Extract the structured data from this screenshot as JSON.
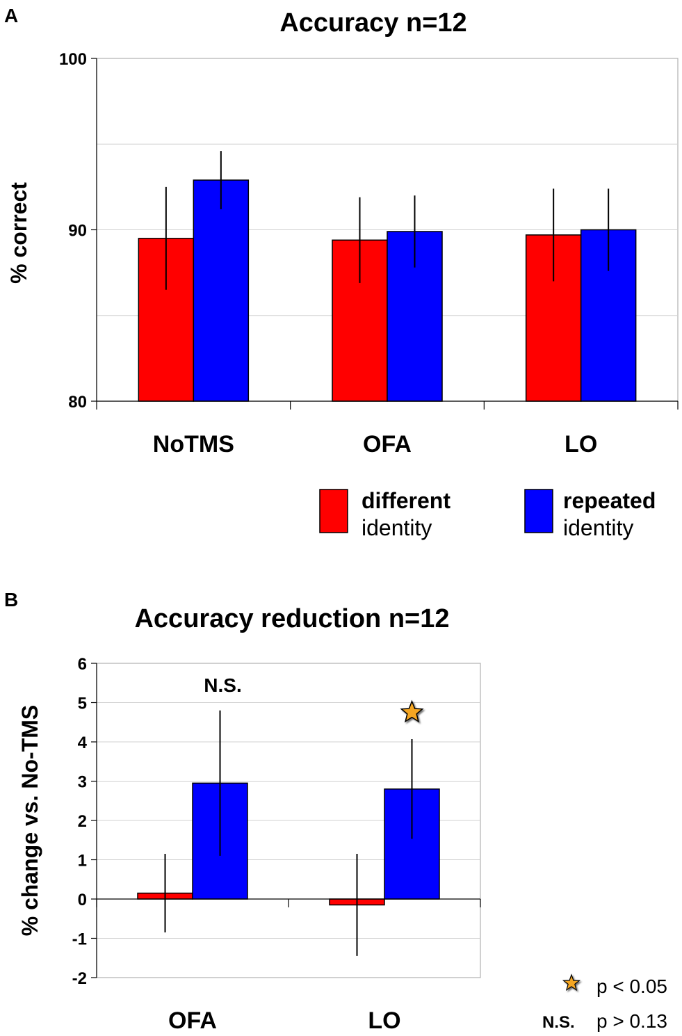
{
  "chart_data": [
    {
      "panel": "A",
      "type": "bar",
      "title": "Accuracy n=12",
      "xlabel": "",
      "ylabel": "% correct",
      "ylim": [
        80,
        100
      ],
      "yticks": [
        "80",
        "90",
        "100"
      ],
      "grid": true,
      "categories": [
        "NoTMS",
        "OFA",
        "LO"
      ],
      "series": [
        {
          "name": "different identity",
          "color": "#ff0000",
          "values": [
            89.5,
            89.4,
            89.7
          ],
          "err": [
            3.0,
            2.5,
            2.7
          ]
        },
        {
          "name": "repeated identity",
          "color": "#0000ff",
          "values": [
            92.9,
            89.9,
            90.0
          ],
          "err": [
            1.7,
            2.1,
            2.4
          ]
        }
      ],
      "legend": [
        {
          "main": "different",
          "sub": "identity",
          "color": "#ff0000"
        },
        {
          "main": "repeated",
          "sub": "identity",
          "color": "#0000ff"
        }
      ]
    },
    {
      "panel": "B",
      "type": "bar",
      "title": "Accuracy reduction  n=12",
      "xlabel": "",
      "ylabel": "% change vs. No-TMS",
      "ylim": [
        -2,
        6
      ],
      "yticks": [
        "-2",
        "-1",
        "0",
        "1",
        "2",
        "3",
        "4",
        "5",
        "6"
      ],
      "grid": true,
      "categories": [
        "OFA",
        "LO"
      ],
      "series": [
        {
          "name": "different identity",
          "color": "#ff0000",
          "values": [
            0.15,
            -0.15
          ],
          "err": [
            1.0,
            1.3
          ]
        },
        {
          "name": "repeated identity",
          "color": "#0000ff",
          "values": [
            2.95,
            2.8
          ],
          "err": [
            1.85,
            1.27
          ]
        }
      ],
      "annotations": [
        {
          "category": "OFA",
          "text": "N.S.",
          "at_value": 5.45
        },
        {
          "category": "LO",
          "symbol": "star",
          "at_value": 4.75,
          "color": "#f5a623"
        }
      ],
      "key": [
        {
          "symbol": "star",
          "label": "p < 0.05",
          "color": "#f5a623"
        },
        {
          "symbol": "N.S.",
          "label": "p > 0.13"
        }
      ]
    }
  ]
}
